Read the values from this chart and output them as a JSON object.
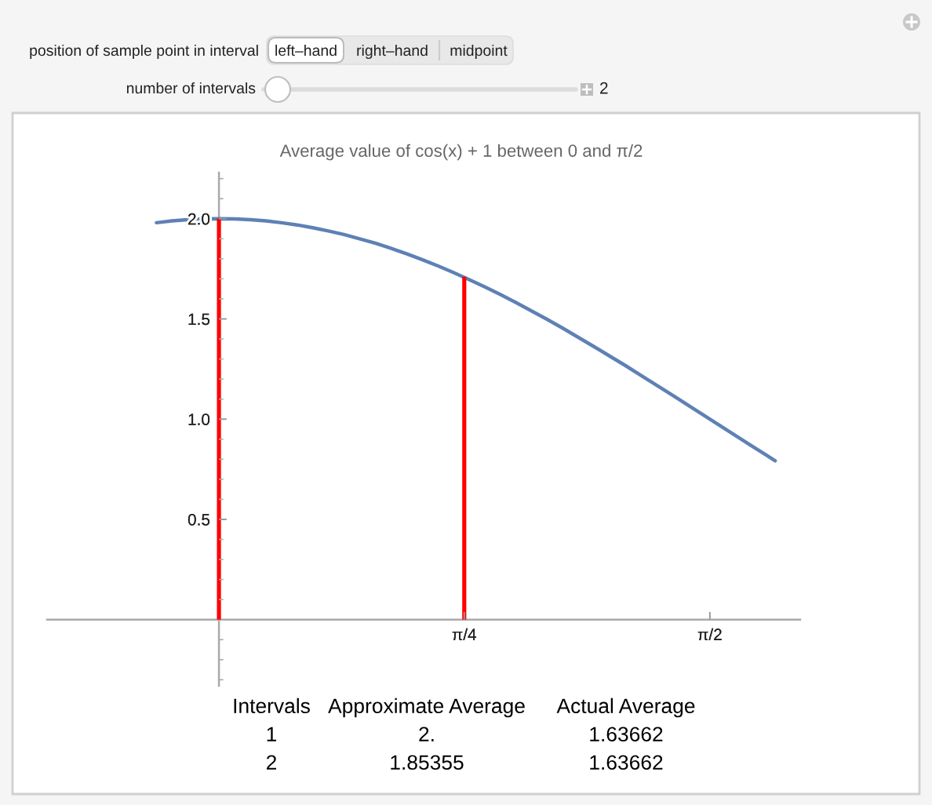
{
  "chart_data": {
    "type": "line",
    "title": "Average value of cos(x) + 1 between 0 and π/2",
    "xlim": [
      -0.55,
      1.86
    ],
    "ylim": [
      -0.33,
      2.23
    ],
    "xticks": [
      {
        "value": 0.785,
        "label": "π/4"
      },
      {
        "value": 1.571,
        "label": "π/2"
      }
    ],
    "yticks": [
      {
        "value": -0.3,
        "label": null
      },
      {
        "value": -0.2,
        "label": null
      },
      {
        "value": -0.1,
        "label": null
      },
      {
        "value": 0.1,
        "label": null
      },
      {
        "value": 0.2,
        "label": null
      },
      {
        "value": 0.3,
        "label": null
      },
      {
        "value": 0.4,
        "label": null
      },
      {
        "value": 0.5,
        "label": "0.5"
      },
      {
        "value": 0.6,
        "label": null
      },
      {
        "value": 0.7,
        "label": null
      },
      {
        "value": 0.8,
        "label": null
      },
      {
        "value": 0.9,
        "label": null
      },
      {
        "value": 1,
        "label": "1.0"
      },
      {
        "value": 1.1,
        "label": null
      },
      {
        "value": 1.2,
        "label": null
      },
      {
        "value": 1.3,
        "label": null
      },
      {
        "value": 1.4,
        "label": null
      },
      {
        "value": 1.5,
        "label": "1.5"
      },
      {
        "value": 1.6,
        "label": null
      },
      {
        "value": 1.7,
        "label": null
      },
      {
        "value": 1.8,
        "label": null
      },
      {
        "value": 1.9,
        "label": null
      },
      {
        "value": 2,
        "label": "2.0"
      },
      {
        "value": 2.1,
        "label": null
      },
      {
        "value": 2.2,
        "label": null
      }
    ],
    "series": [
      {
        "color": "#5e81b5",
        "x": [
          -0.2,
          -0.15,
          -0.1,
          -0.05,
          0,
          0.05,
          0.1,
          0.15,
          0.2,
          0.25,
          0.3,
          0.35,
          0.4,
          0.45,
          0.5,
          0.55,
          0.6,
          0.65,
          0.7,
          0.75,
          0.8,
          0.85,
          0.9,
          0.95,
          1.0,
          1.05,
          1.1,
          1.15,
          1.2,
          1.25,
          1.3,
          1.35,
          1.4,
          1.45,
          1.5,
          1.55,
          1.6,
          1.65,
          1.7,
          1.75,
          1.78
        ],
        "values": [
          1.98,
          1.989,
          1.995,
          1.999,
          2.0,
          1.999,
          1.995,
          1.989,
          1.98,
          1.969,
          1.955,
          1.939,
          1.921,
          1.9,
          1.878,
          1.853,
          1.825,
          1.796,
          1.765,
          1.732,
          1.697,
          1.66,
          1.622,
          1.582,
          1.54,
          1.498,
          1.454,
          1.408,
          1.362,
          1.315,
          1.268,
          1.219,
          1.17,
          1.121,
          1.071,
          1.021,
          0.971,
          0.921,
          0.871,
          0.822,
          0.792
        ]
      },
      {
        "type": "bar",
        "color": "#ff0000",
        "x": [
          0,
          0.785
        ],
        "values": [
          2,
          1.71
        ]
      }
    ],
    "annotations": [
      "position of sample point in interval",
      "left–hand",
      "right–hand",
      "midpoint",
      "number of intervals",
      "2",
      "Intervals",
      "Approximate Average",
      "Actual Average",
      "1",
      "2.",
      "1.63662",
      "2",
      "1.85355",
      "1.63662"
    ]
  }
}
